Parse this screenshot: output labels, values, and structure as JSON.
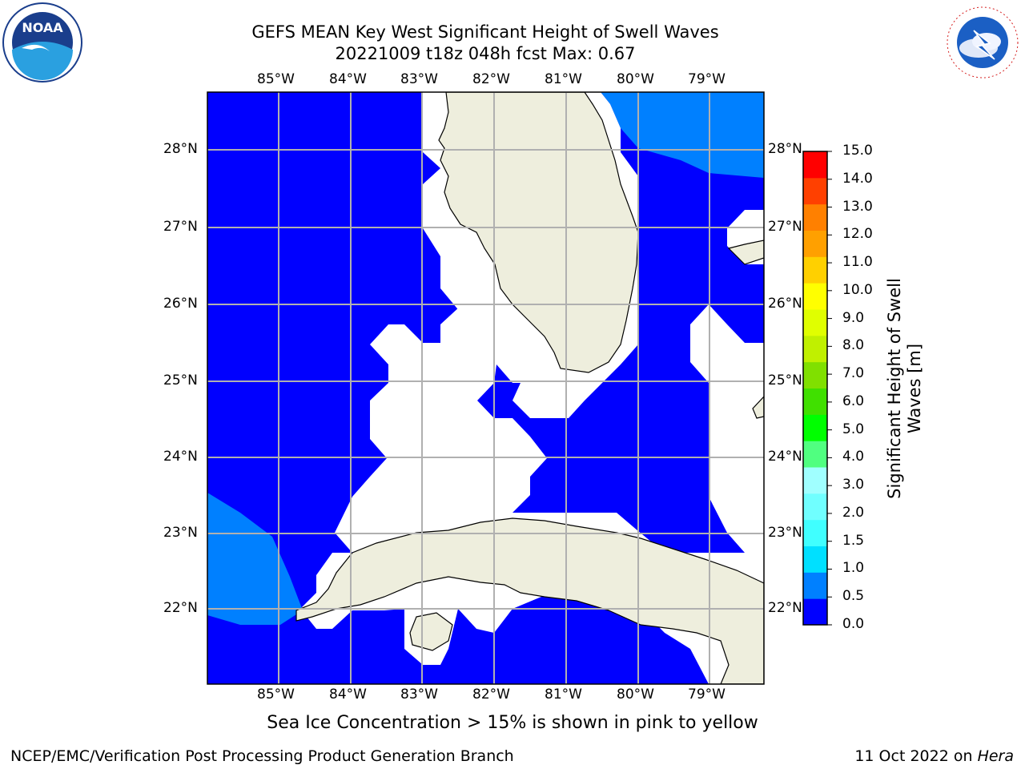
{
  "title": {
    "line1": "GEFS MEAN Key West Significant Height of Swell Waves",
    "line2": "20221009 t18z 048h fcst   Max: 0.67"
  },
  "logos": {
    "left": {
      "icon": "noaa-logo",
      "text": "NOAA"
    },
    "right": {
      "icon": "nws-logo",
      "text": "NATIONAL WEATHER SERVICE"
    }
  },
  "map": {
    "region": "Key West",
    "lon_labels": [
      "85°W",
      "84°W",
      "83°W",
      "82°W",
      "81°W",
      "80°W",
      "79°W"
    ],
    "lat_labels": [
      "28°N",
      "27°N",
      "26°N",
      "25°N",
      "24°N",
      "23°N",
      "22°N"
    ],
    "colors": {
      "ocean_low": "#0000ff",
      "ocean_mid": "#0080ff",
      "land": "#eeeedd",
      "no_data": "#ffffff",
      "grid": "#b0b0b0"
    }
  },
  "colorbar": {
    "label": "Significant Height of Swell Waves [m]",
    "ticks": [
      "0.0",
      "0.5",
      "1.0",
      "1.5",
      "2.0",
      "3.0",
      "4.0",
      "5.0",
      "6.0",
      "7.0",
      "8.0",
      "9.0",
      "10.0",
      "11.0",
      "12.0",
      "13.0",
      "14.0",
      "15.0"
    ],
    "colors": [
      "#0000ff",
      "#0080ff",
      "#00e0ff",
      "#40ffff",
      "#70ffff",
      "#a0ffff",
      "#50ff80",
      "#00ff00",
      "#40e000",
      "#80e000",
      "#c0f000",
      "#e0ff00",
      "#ffff00",
      "#ffd000",
      "#ffa000",
      "#ff8000",
      "#ff4000",
      "#ff0000"
    ]
  },
  "note": "Sea Ice Concentration > 15% is shown in pink to yellow",
  "footer": {
    "left": "NCEP/EMC/Verification Post Processing Product Generation Branch",
    "date": "11 Oct 2022 on ",
    "host": "Hera"
  }
}
